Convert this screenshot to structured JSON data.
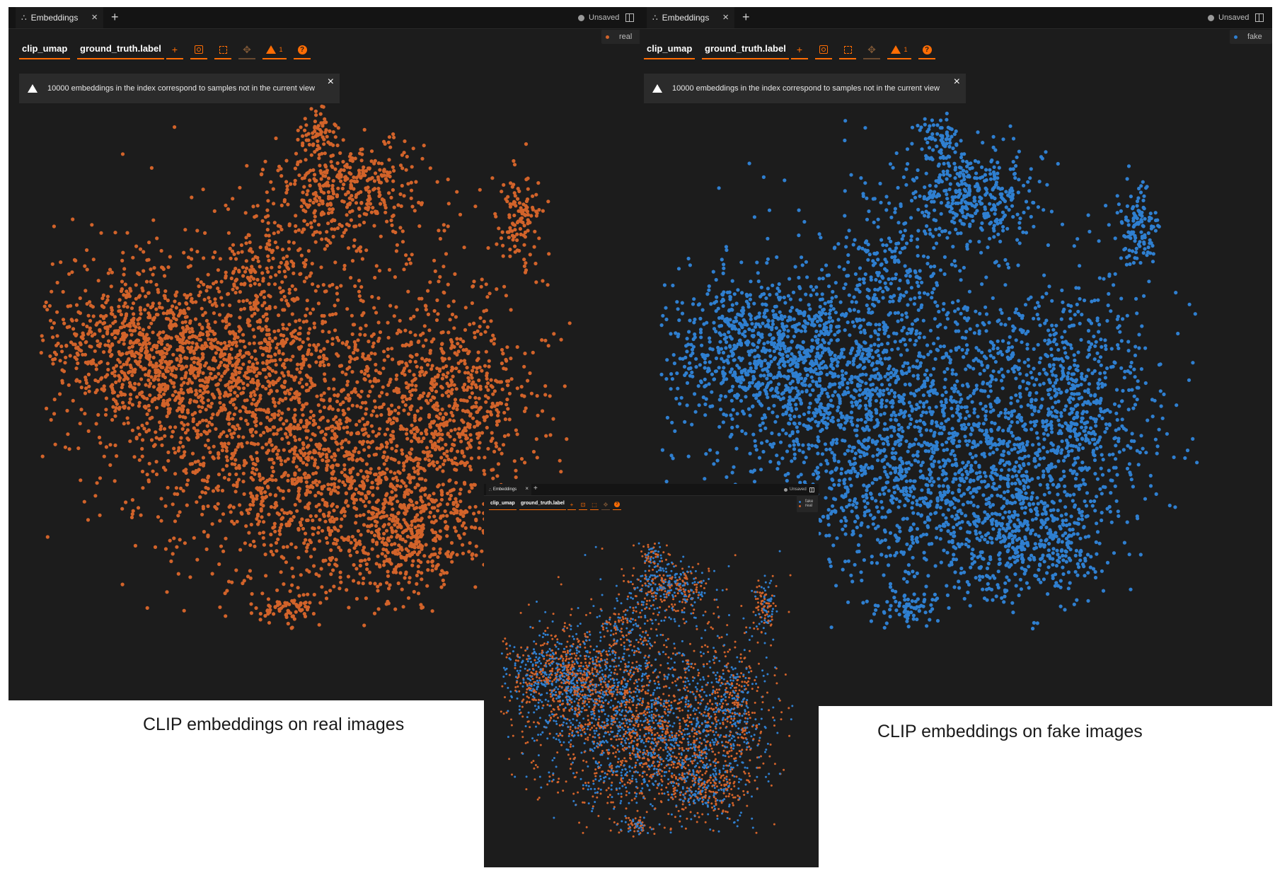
{
  "panels": [
    {
      "tab_label": "Embeddings",
      "tab_icon": "embeddings-icon",
      "tab_close": "×",
      "tab_add": "+",
      "unsaved_label": "Unsaved",
      "legend": [
        {
          "label": "real",
          "color": "#d2632a"
        }
      ],
      "selects": {
        "embedding": "clip_umap",
        "color_by": "ground_truth.label"
      },
      "warning_count": "1",
      "alert_text": "10000 embeddings in the index correspond to samples not in the current view",
      "alert_close": "×",
      "point_color": "#d2632a"
    },
    {
      "tab_label": "Embeddings",
      "tab_icon": "embeddings-icon",
      "tab_close": "×",
      "tab_add": "+",
      "unsaved_label": "Unsaved",
      "legend": [
        {
          "label": "fake",
          "color": "#2f7fd0"
        }
      ],
      "selects": {
        "embedding": "clip_umap",
        "color_by": "ground_truth.label"
      },
      "warning_count": "1",
      "alert_text": "10000 embeddings in the index correspond to samples not in the current view",
      "alert_close": "×",
      "point_color": "#2f7fd0"
    },
    {
      "tab_label": "Embeddings",
      "tab_icon": "embeddings-icon",
      "tab_close": "×",
      "tab_add": "+",
      "unsaved_label": "Unsaved",
      "legend": [
        {
          "label": "fake",
          "color": "#2f7fd0"
        },
        {
          "label": "real",
          "color": "#d2632a"
        }
      ],
      "selects": {
        "embedding": "clip_umap",
        "color_by": "ground_truth.label"
      },
      "point_colors": [
        "#d2632a",
        "#2f7fd0"
      ]
    }
  ],
  "captions": {
    "left": "CLIP embeddings on real images",
    "right": "CLIP embeddings on fake images"
  }
}
